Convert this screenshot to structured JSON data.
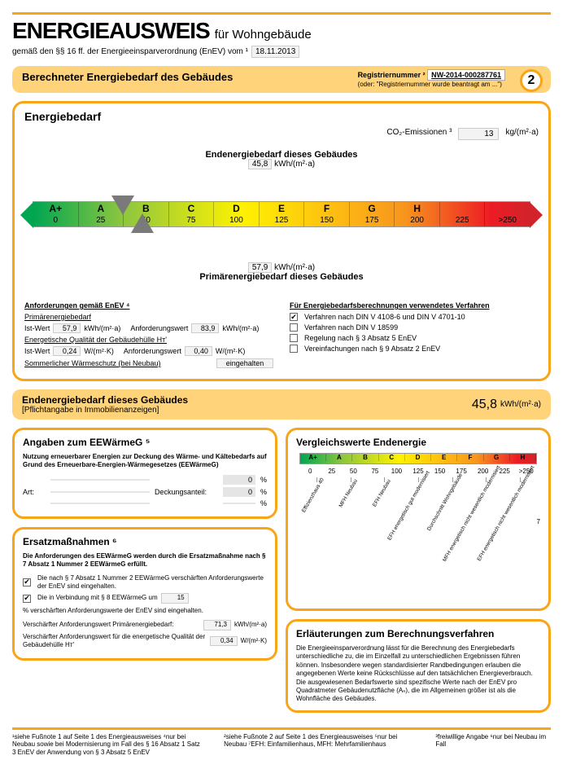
{
  "header": {
    "title": "ENERGIEAUSWEIS",
    "subtitle": "für Wohngebäude",
    "regulation_line": "gemäß den §§ 16 ff. der Energieeinsparverordnung (EnEV) vom ¹",
    "date": "18.11.2013"
  },
  "subheader": {
    "title": "Berechneter Energiebedarf des Gebäudes",
    "reg_label": "Registriernummer ²",
    "reg_value": "NW-2014-000287761",
    "reg_alt": "(oder: \"Registriernummer wurde beantragt am ...\")",
    "page": "2"
  },
  "energie": {
    "title": "Energiebedarf",
    "co2_label": "CO₂-Emissionen ³",
    "co2_value": "13",
    "co2_unit": "kg/(m²·a)",
    "end_label": "Endenergiebedarf dieses Gebäudes",
    "end_value": "45,8",
    "end_unit": "kWh/(m²·a)",
    "prim_label": "Primärenergiebedarf dieses Gebäudes",
    "prim_value": "57,9",
    "prim_unit": "kWh/(m²·a)",
    "gauge": {
      "letters": [
        "A+",
        "A",
        "B",
        "C",
        "D",
        "E",
        "F",
        "G",
        "H"
      ],
      "numbers": [
        "0",
        "25",
        "50",
        "75",
        "100",
        "125",
        "150",
        "175",
        "200",
        "225",
        ">250"
      ],
      "top_pct": 18,
      "bot_pct": 22
    },
    "req_title": "Anforderungen gemäß EnEV ⁴",
    "prim_bedarf": "Primärenergiebedarf",
    "ist_label": "Ist-Wert",
    "ist_prim_val": "57,9",
    "anf_label": "Anforderungswert",
    "anf_prim_val": "83,9",
    "kwh_unit": "kWh/(m²·a)",
    "hull_label": "Energetische Qualität der Gebäudehülle Hᴛ'",
    "ist_hull_val": "0,24",
    "anf_hull_val": "0,40",
    "wmk_unit": "W/(m²·K)",
    "sommer_label": "Sommerlicher Wärmeschutz (bei Neubau)",
    "sommer_val": "eingehalten",
    "verfahren_title": "Für Energiebedarfsberechnungen verwendetes Verfahren",
    "verfahren": [
      {
        "checked": true,
        "label": "Verfahren nach DIN V 4108-6 und DIN V 4701-10"
      },
      {
        "checked": false,
        "label": "Verfahren nach DIN V 18599"
      },
      {
        "checked": false,
        "label": "Regelung nach § 3 Absatz 5 EnEV"
      },
      {
        "checked": false,
        "label": "Vereinfachungen nach § 9 Absatz 2 EnEV"
      }
    ]
  },
  "strip": {
    "t1": "Endenergiebedarf dieses Gebäudes",
    "t2": "[Pflichtangabe in Immobilienanzeigen]",
    "val": "45,8",
    "unit": "kWh/(m²·a)"
  },
  "eew": {
    "title": "Angaben zum EEWärmeG ⁵",
    "desc": "Nutzung erneuerbarer Energien zur Deckung des Wärme- und Kältebedarfs auf Grund des Erneuerbare-Energien-Wärmegesetzes (EEWärmeG)",
    "art_label": "Art:",
    "deck_label": "Deckungsanteil:",
    "v1": "0",
    "v2": "0",
    "pct": "%"
  },
  "ersatz": {
    "title": "Ersatzmaßnahmen ⁶",
    "desc": "Die Anforderungen des EEWärmeG werden durch die Ersatzmaßnahme nach § 7 Absatz 1 Nummer 2 EEWärmeG erfüllt.",
    "c1": "Die nach § 7 Absatz 1 Nummer 2 EEWärmeG verschärften Anforderungswerte der EnEV sind eingehalten.",
    "c2a": "Die in Verbindung mit § 8 EEWärmeG um",
    "c2_val": "15",
    "c2b": "% verschärften Anforderungswerte der EnEV sind eingehalten.",
    "v_prim_label": "Verschärfter Anforderungswert Primärenergiebedarf:",
    "v_prim_val": "71,3",
    "v_hull_label": "Verschärfter Anforderungswert für die energetische Qualität der Gebäudehülle Hᴛ'",
    "v_hull_val": "0,34"
  },
  "vergleich": {
    "title": "Vergleichswerte Endenergie",
    "letters": [
      "A+",
      "A",
      "B",
      "C",
      "D",
      "E",
      "F",
      "G",
      "H"
    ],
    "numbers": [
      "0",
      "25",
      "50",
      "75",
      "100",
      "125",
      "150",
      "175",
      "200",
      "225",
      ">250"
    ],
    "ticks": [
      "Effizienzhaus 40",
      "MFH Neubau",
      "EFH Neubau",
      "EFH energetisch gut modernisiert",
      "Durchschnitt Wohngebäude",
      "MFH energetisch nicht wesentlich modernisiert",
      "EFH energetisch nicht wesentlich modernisiert"
    ],
    "note7": "7"
  },
  "erlauter": {
    "title": "Erläuterungen zum Berechnungsverfahren",
    "text": "Die Energieeinsparverordnung lässt für die Berechnung des Energiebedarfs unterschiedliche zu, die im Einzelfall zu unterschiedlichen Ergebnissen führen können. Insbesondere wegen standardisierter Randbedingungen erlauben die angegebenen Werte keine Rückschlüsse auf den tatsächlichen Energieverbrauch. Die ausgewiesenen Bedarfswerte sind spezifische Werte nach der EnEV pro Quadratmeter Gebäudenutzfläche (Aₙ), die im Allgemeinen größer ist als die Wohnfläche des Gebäudes."
  },
  "footnotes": {
    "c1": "¹siehe Fußnote 1 auf Seite 1 des Energieausweises\n⁴nur bei Neubau sowie bei Modernisierung im Fall des § 16 Absatz 1 Satz 3 EnEV\nder Anwendung von § 3 Absatz 5 EnEV",
    "c2": "²siehe Fußnote 2 auf Seite 1 des Energieausweises\n⁵nur bei Neubau\n⁷EFH: Einfamilienhaus, MFH: Mehrfamilienhaus",
    "c3": "³freiwillige Angabe\n⁶nur bei Neubau im Fall"
  }
}
